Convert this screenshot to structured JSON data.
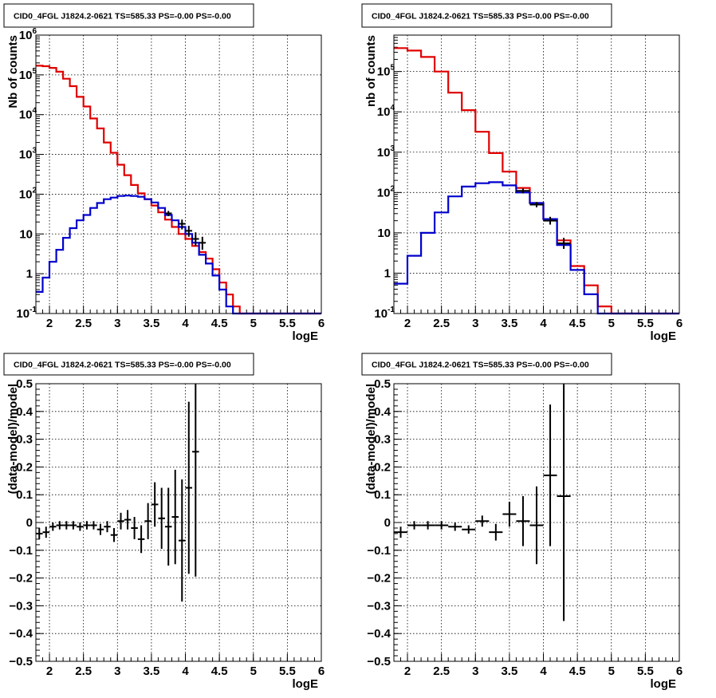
{
  "colors": {
    "data_model": "#e00000",
    "background_model": "#0000cc",
    "data": "#000000",
    "grid": "#000000"
  },
  "chart_data": [
    {
      "type": "histogram",
      "title": "CID0_4FGL J1824.2-0621 TS=585.33 PS=-0.00 PS=-0.00",
      "xlabel": "logE",
      "ylabel": "Nb of counts",
      "log_y": true,
      "xlim": [
        1.8,
        6
      ],
      "ylim": [
        0.1,
        1000000
      ],
      "grid": true,
      "x_tick_labels": [
        "2",
        "2.5",
        "3",
        "3.5",
        "4",
        "4.5",
        "5",
        "5.5",
        "6"
      ],
      "y_tick_labels": [
        {
          "base": "10",
          "exp": "-1"
        },
        {
          "base": "1",
          "exp": ""
        },
        {
          "base": "10",
          "exp": ""
        },
        {
          "base": "10",
          "exp": "2"
        },
        {
          "base": "10",
          "exp": "3"
        },
        {
          "base": "10",
          "exp": "4"
        },
        {
          "base": "10",
          "exp": "5"
        },
        {
          "base": "10",
          "exp": "6"
        }
      ],
      "bin_edges": [
        1.8,
        1.9,
        2.0,
        2.1,
        2.2,
        2.3,
        2.4,
        2.5,
        2.6,
        2.7,
        2.8,
        2.9,
        3.0,
        3.1,
        3.2,
        3.3,
        3.4,
        3.5,
        3.6,
        3.7,
        3.8,
        3.9,
        4.0,
        4.1,
        4.2,
        4.3,
        4.4,
        4.5,
        4.6,
        4.7,
        4.8,
        4.9,
        5.0,
        5.1,
        5.2,
        5.3,
        5.4,
        5.5,
        5.6,
        5.7,
        5.8,
        5.9,
        6.0
      ],
      "series": [
        {
          "name": "",
          "role": "model_total",
          "values": [
            170000,
            165000,
            150000,
            120000,
            80000,
            52000,
            28000,
            16000,
            8000,
            4500,
            2000,
            1100,
            550,
            300,
            170,
            105,
            75,
            52,
            35,
            23,
            15,
            10,
            7.5,
            5,
            3.5,
            2.4,
            1.3,
            0.6,
            0.3,
            0.15,
            0.1,
            0.1,
            0.1,
            0.1,
            0.1,
            0.1,
            0.1,
            0.1,
            0.1,
            0.1,
            0.1,
            0.1
          ]
        },
        {
          "name": "",
          "role": "model_source",
          "values": [
            0.35,
            0.8,
            2,
            4,
            8,
            14,
            22,
            30,
            45,
            60,
            75,
            82,
            90,
            92,
            90,
            86,
            75,
            62,
            45,
            30,
            22,
            15,
            10,
            6,
            3,
            1.8,
            0.9,
            0.4,
            0.15,
            0.1,
            0.1,
            0.1,
            0.1,
            0.1,
            0.1,
            0.1,
            0.1,
            0.1,
            0.1,
            0.1,
            0.1,
            0.1
          ]
        }
      ],
      "data_points": [
        {
          "x": 3.75,
          "y": 33,
          "yerr": [
            28,
            38
          ]
        },
        {
          "x": 3.95,
          "y": 18,
          "yerr": [
            13,
            23
          ]
        },
        {
          "x": 4.05,
          "y": 12,
          "yerr": [
            8.5,
            16
          ]
        },
        {
          "x": 4.15,
          "y": 7.5,
          "yerr": [
            5,
            11
          ]
        },
        {
          "x": 4.25,
          "y": 6,
          "yerr": [
            4,
            8.5
          ]
        }
      ]
    },
    {
      "type": "histogram",
      "title": "CID0_4FGL J1824.2-0621 TS=585.33 PS=-0.00 PS=-0.00",
      "xlabel": "logE",
      "ylabel": "nb of counts",
      "log_y": true,
      "xlim": [
        1.8,
        6
      ],
      "ylim": [
        0.1,
        800000
      ],
      "grid": true,
      "x_tick_labels": [
        "2",
        "2.5",
        "3",
        "3.5",
        "4",
        "4.5",
        "5",
        "5.5",
        "6"
      ],
      "y_tick_labels": [
        {
          "base": "10",
          "exp": "-1"
        },
        {
          "base": "1",
          "exp": ""
        },
        {
          "base": "10",
          "exp": ""
        },
        {
          "base": "10",
          "exp": "2"
        },
        {
          "base": "10",
          "exp": "3"
        },
        {
          "base": "10",
          "exp": "4"
        },
        {
          "base": "10",
          "exp": "5"
        }
      ],
      "bin_edges": [
        1.8,
        2.0,
        2.2,
        2.4,
        2.6,
        2.8,
        3.0,
        3.2,
        3.4,
        3.6,
        3.8,
        4.0,
        4.2,
        4.4,
        4.6,
        4.8,
        5.0,
        5.2,
        5.4,
        5.6,
        5.8,
        6.0
      ],
      "series": [
        {
          "name": "",
          "role": "model_total",
          "values": [
            380000,
            330000,
            230000,
            100000,
            30000,
            11000,
            3200,
            950,
            330,
            130,
            55,
            22,
            6.5,
            1.5,
            0.5,
            0.15,
            0.1,
            0.1,
            0.1,
            0.1,
            0.1
          ]
        },
        {
          "name": "",
          "role": "model_source",
          "values": [
            0.55,
            2.7,
            10,
            32,
            80,
            140,
            170,
            180,
            150,
            100,
            55,
            22,
            5,
            1.2,
            0.3,
            0.1,
            0.1,
            0.1,
            0.1,
            0.1,
            0.1
          ]
        }
      ],
      "data_points": [
        {
          "x": 3.7,
          "y": 110,
          "yerr": [
            95,
            125
          ]
        },
        {
          "x": 3.9,
          "y": 50,
          "yerr": [
            43,
            58
          ]
        },
        {
          "x": 4.1,
          "y": 20,
          "yerr": [
            16,
            25
          ]
        },
        {
          "x": 4.3,
          "y": 5.5,
          "yerr": [
            4,
            7.5
          ]
        }
      ]
    },
    {
      "type": "scatter",
      "title": "CID0_4FGL J1824.2-0621 TS=585.33 PS=-0.00 PS=-0.00",
      "xlabel": "logE",
      "ylabel": "(data-model)/model",
      "xlim": [
        1.8,
        6
      ],
      "ylim": [
        -0.5,
        0.5
      ],
      "grid": true,
      "x_tick_labels": [
        "2",
        "2.5",
        "3",
        "3.5",
        "4",
        "4.5",
        "5",
        "5.5",
        "6"
      ],
      "y_tick_labels": [
        "−0.5",
        "−0.4",
        "−0.3",
        "−0.2",
        "−0.1",
        "0",
        "0.1",
        "0.2",
        "0.3",
        "0.4",
        "0.5"
      ],
      "y_ticks": [
        -0.5,
        -0.4,
        -0.3,
        -0.2,
        -0.1,
        0,
        0.1,
        0.2,
        0.3,
        0.4,
        0.5
      ],
      "bin_half_width": 0.05,
      "points": [
        {
          "x": 1.85,
          "y": -0.04,
          "err": 0.02
        },
        {
          "x": 1.95,
          "y": -0.035,
          "err": 0.02
        },
        {
          "x": 2.05,
          "y": -0.015,
          "err": 0.015
        },
        {
          "x": 2.15,
          "y": -0.01,
          "err": 0.015
        },
        {
          "x": 2.25,
          "y": -0.01,
          "err": 0.015
        },
        {
          "x": 2.35,
          "y": -0.01,
          "err": 0.015
        },
        {
          "x": 2.45,
          "y": -0.015,
          "err": 0.015
        },
        {
          "x": 2.55,
          "y": -0.01,
          "err": 0.015
        },
        {
          "x": 2.65,
          "y": -0.01,
          "err": 0.015
        },
        {
          "x": 2.75,
          "y": -0.025,
          "err": 0.02
        },
        {
          "x": 2.85,
          "y": -0.015,
          "err": 0.02
        },
        {
          "x": 2.95,
          "y": -0.045,
          "err": 0.025
        },
        {
          "x": 3.05,
          "y": 0.005,
          "err": 0.03
        },
        {
          "x": 3.15,
          "y": 0.01,
          "err": 0.035
        },
        {
          "x": 3.25,
          "y": -0.02,
          "err": 0.04
        },
        {
          "x": 3.35,
          "y": -0.06,
          "err": 0.05
        },
        {
          "x": 3.45,
          "y": 0.005,
          "err": 0.065
        },
        {
          "x": 3.55,
          "y": 0.065,
          "err": 0.08
        },
        {
          "x": 3.65,
          "y": 0.015,
          "err": 0.11
        },
        {
          "x": 3.75,
          "y": -0.015,
          "err": 0.14
        },
        {
          "x": 3.85,
          "y": 0.02,
          "err": 0.17
        },
        {
          "x": 3.95,
          "y": -0.065,
          "err": 0.22
        },
        {
          "x": 4.05,
          "y": 0.125,
          "err": 0.31
        },
        {
          "x": 4.15,
          "y": 0.255,
          "err": 0.45
        }
      ]
    },
    {
      "type": "scatter",
      "title": "CID0_4FGL J1824.2-0621 TS=585.33 PS=-0.00 PS=-0.00",
      "xlabel": "logE",
      "ylabel": "(data-model)/model",
      "xlim": [
        1.8,
        6
      ],
      "ylim": [
        -0.5,
        0.5
      ],
      "grid": true,
      "x_tick_labels": [
        "2",
        "2.5",
        "3",
        "3.5",
        "4",
        "4.5",
        "5",
        "5.5",
        "6"
      ],
      "y_tick_labels": [
        "−0.5",
        "−0.4",
        "−0.3",
        "−0.2",
        "−0.1",
        "0",
        "0.1",
        "0.2",
        "0.3",
        "0.4",
        "0.5"
      ],
      "y_ticks": [
        -0.5,
        -0.4,
        -0.3,
        -0.2,
        -0.1,
        0,
        0.1,
        0.2,
        0.3,
        0.4,
        0.5
      ],
      "bin_half_width": 0.1,
      "points": [
        {
          "x": 1.9,
          "y": -0.035,
          "err": 0.02
        },
        {
          "x": 2.1,
          "y": -0.01,
          "err": 0.015
        },
        {
          "x": 2.3,
          "y": -0.01,
          "err": 0.015
        },
        {
          "x": 2.5,
          "y": -0.01,
          "err": 0.015
        },
        {
          "x": 2.7,
          "y": -0.015,
          "err": 0.015
        },
        {
          "x": 2.9,
          "y": -0.025,
          "err": 0.015
        },
        {
          "x": 3.1,
          "y": 0.005,
          "err": 0.02
        },
        {
          "x": 3.3,
          "y": -0.035,
          "err": 0.03
        },
        {
          "x": 3.5,
          "y": 0.03,
          "err": 0.045
        },
        {
          "x": 3.7,
          "y": 0.005,
          "err": 0.09
        },
        {
          "x": 3.9,
          "y": -0.01,
          "err": 0.14
        },
        {
          "x": 4.1,
          "y": 0.17,
          "err": 0.255
        },
        {
          "x": 4.3,
          "y": 0.095,
          "err": 0.45
        }
      ]
    }
  ]
}
